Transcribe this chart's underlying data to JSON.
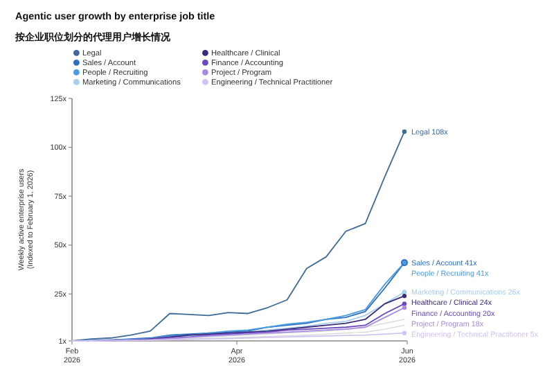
{
  "chart_data": {
    "type": "line",
    "title": "Agentic user growth by enterprise job title",
    "subtitle": "按企业职位划分的代理用户增长情况",
    "ylabel": "Weekly active enterprise users (Indexed to February 1, 2026)",
    "x": [
      "2026-02-01",
      "2026-02-08",
      "2026-02-15",
      "2026-02-22",
      "2026-03-01",
      "2026-03-08",
      "2026-03-15",
      "2026-03-22",
      "2026-03-29",
      "2026-04-05",
      "2026-04-12",
      "2026-04-19",
      "2026-04-26",
      "2026-05-03",
      "2026-05-10",
      "2026-05-17",
      "2026-05-24",
      "2026-05-31"
    ],
    "xlim": [
      "2026-02-01",
      "2026-06-01"
    ],
    "xticks": [
      {
        "value": "2026-02-01",
        "label": "Feb 2026"
      },
      {
        "value": "2026-04-01",
        "label": "Apr 2026"
      },
      {
        "value": "2026-06-01",
        "label": "Jun 2026"
      }
    ],
    "ylim": [
      1,
      125
    ],
    "yticks": [
      {
        "value": 1,
        "label": "1x"
      },
      {
        "value": 25,
        "label": "25x"
      },
      {
        "value": 50,
        "label": "50x"
      },
      {
        "value": 75,
        "label": "75x"
      },
      {
        "value": 100,
        "label": "100x"
      },
      {
        "value": 125,
        "label": "125x"
      }
    ],
    "grid": false,
    "legend": "top",
    "series": [
      {
        "color": "#d6d6d6",
        "values": [
          1,
          1,
          1.1,
          1.3,
          1.5,
          2,
          2.5,
          3,
          3.5,
          4,
          4.5,
          5,
          5.5,
          6,
          7,
          8,
          10,
          12
        ]
      },
      {
        "color": "#d6d6d6",
        "values": [
          1,
          1,
          1.1,
          1.2,
          1.3,
          1.6,
          2,
          2.3,
          2.6,
          3,
          3.3,
          3.6,
          4,
          4.5,
          5,
          5.5,
          7,
          9
        ]
      },
      {
        "name": "Legal",
        "color": "#3d6a99",
        "values": [
          1,
          2,
          2.5,
          4,
          6,
          15,
          14.5,
          14,
          15.5,
          15,
          18,
          22,
          38,
          44,
          57,
          61,
          85,
          108
        ],
        "value_labels": [
          null,
          null,
          null,
          null,
          null,
          null,
          null,
          null,
          null,
          null,
          null,
          null,
          null,
          null,
          null,
          null,
          null,
          "108x"
        ]
      },
      {
        "name": "Sales / Account",
        "color": "#2f6fbf",
        "values": [
          1,
          1.2,
          1.5,
          2,
          2.5,
          4,
          4.5,
          5,
          5.5,
          6,
          8,
          9,
          10,
          12,
          13,
          16,
          28,
          41
        ],
        "value_labels": [
          null,
          null,
          null,
          null,
          null,
          null,
          null,
          null,
          null,
          null,
          null,
          null,
          null,
          null,
          null,
          null,
          null,
          "41x"
        ]
      },
      {
        "name": "People / Recruiting",
        "color": "#4a9be0",
        "values": [
          1,
          1.1,
          1.4,
          1.8,
          2.3,
          3.5,
          4,
          5,
          6,
          6.5,
          8,
          9.5,
          10.5,
          12,
          14,
          17,
          30,
          41
        ],
        "value_labels": [
          null,
          null,
          null,
          null,
          null,
          null,
          null,
          null,
          null,
          null,
          null,
          null,
          null,
          null,
          null,
          null,
          null,
          "41x"
        ]
      },
      {
        "name": "Marketing / Communications",
        "color": "#a9cdee",
        "values": [
          1,
          1.1,
          1.3,
          1.6,
          2,
          3,
          3.5,
          4,
          5,
          5.5,
          6.5,
          7.5,
          8.5,
          10,
          11,
          14,
          20,
          26
        ],
        "value_labels": [
          null,
          null,
          null,
          null,
          null,
          null,
          null,
          null,
          null,
          null,
          null,
          null,
          null,
          null,
          null,
          null,
          null,
          "26x"
        ]
      },
      {
        "name": "Healthcare / Clinical",
        "color": "#3a2a78",
        "values": [
          1,
          1,
          1.2,
          1.5,
          2,
          3,
          4,
          4.5,
          5,
          5.5,
          6,
          7,
          8,
          9,
          10,
          12,
          20,
          24
        ],
        "value_labels": [
          null,
          null,
          null,
          null,
          null,
          null,
          null,
          null,
          null,
          null,
          null,
          null,
          null,
          null,
          null,
          null,
          null,
          "24x"
        ]
      },
      {
        "name": "Finance / Accounting",
        "color": "#6a48c0",
        "values": [
          1,
          1,
          1.2,
          1.4,
          1.8,
          2.5,
          3,
          4,
          4.5,
          5,
          5.5,
          6.5,
          7,
          7.5,
          8,
          9,
          15,
          20
        ],
        "value_labels": [
          null,
          null,
          null,
          null,
          null,
          null,
          null,
          null,
          null,
          null,
          null,
          null,
          null,
          null,
          null,
          null,
          null,
          "20x"
        ]
      },
      {
        "name": "Project / Program",
        "color": "#a78be0",
        "values": [
          1,
          1,
          1.1,
          1.3,
          1.6,
          2.2,
          2.8,
          3.5,
          4,
          4.5,
          5,
          5.5,
          6,
          6.5,
          7,
          8,
          13,
          18
        ],
        "value_labels": [
          null,
          null,
          null,
          null,
          null,
          null,
          null,
          null,
          null,
          null,
          null,
          null,
          null,
          null,
          null,
          null,
          null,
          "18x"
        ]
      },
      {
        "name": "Engineering / Technical Practitioner",
        "color": "#d2c4ee",
        "values": [
          1,
          1,
          1.1,
          1.2,
          1.4,
          1.6,
          1.8,
          2,
          2.2,
          2.5,
          2.8,
          3,
          3.3,
          3.5,
          3.8,
          4,
          4.5,
          5
        ],
        "value_labels": [
          null,
          null,
          null,
          null,
          null,
          null,
          null,
          null,
          null,
          null,
          null,
          null,
          null,
          null,
          null,
          null,
          null,
          "5x"
        ]
      }
    ]
  }
}
